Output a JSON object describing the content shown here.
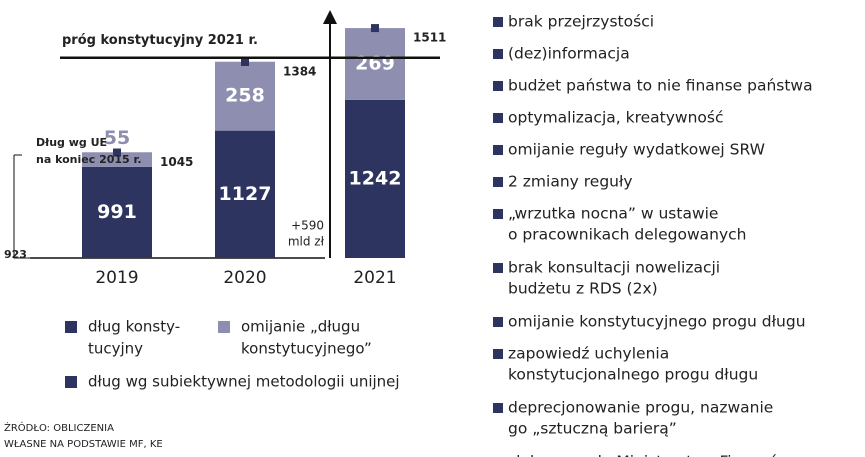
{
  "chart_data": {
    "type": "bar",
    "categories": [
      "2019",
      "2020",
      "2021"
    ],
    "series": [
      {
        "name": "dług konstytucyjny",
        "legend": [
          "dług konsty-",
          "tucyjny"
        ],
        "color": "#2e3460",
        "values": [
          991,
          1127,
          1242
        ]
      },
      {
        "name": "omijanie „długu konstytucyjnego”",
        "legend": [
          "omijanie „długu",
          "konstytucyjnego”"
        ],
        "color": "#8e8fb0",
        "values": [
          55,
          258,
          269
        ]
      },
      {
        "name": "dług wg subiektywnej metodologii unijnej",
        "legend": [
          "dług wg subiektywnej metodologii unijnej"
        ],
        "color": "#2e3460",
        "values": [
          1045,
          1384,
          1511
        ]
      }
    ],
    "ylim": [
      650,
      1560
    ],
    "threshold": {
      "label": "próg konstytucyjny 2021 r.",
      "value": 1400
    },
    "eu_2015": {
      "lines": [
        "Dług wg UE",
        "na koniec 2015 r."
      ],
      "value": 923
    },
    "increase": [
      "+590",
      "mld zł"
    ],
    "source": [
      "ŹRÓDŁO: OBLICZENIA",
      "WŁASNE NA PODSTAWIE MF, KE"
    ]
  },
  "list": [
    [
      "brak przejrzystości"
    ],
    [
      "(dez)informacja"
    ],
    [
      "budżet państwa to nie finanse państwa"
    ],
    [
      "optymalizacja, kreatywność"
    ],
    [
      "omijanie reguły wydatkowej SRW"
    ],
    [
      "2 zmiany reguły"
    ],
    [
      "„wrzutka nocna” w ustawie",
      "o pracownikach delegowanych"
    ],
    [
      "brak konsultacji nowelizacji",
      "budżetu z RDS (2x)"
    ],
    [
      "omijanie konstytucyjnego progu długu"
    ],
    [
      "zapowiedź uchylenia",
      "konstytucjonalnego progu długu"
    ],
    [
      "deprecjonowanie progu, nazwanie",
      "go „sztuczną barierą”"
    ],
    [
      "słabnąca rola Ministerstwa Finansów"
    ]
  ]
}
